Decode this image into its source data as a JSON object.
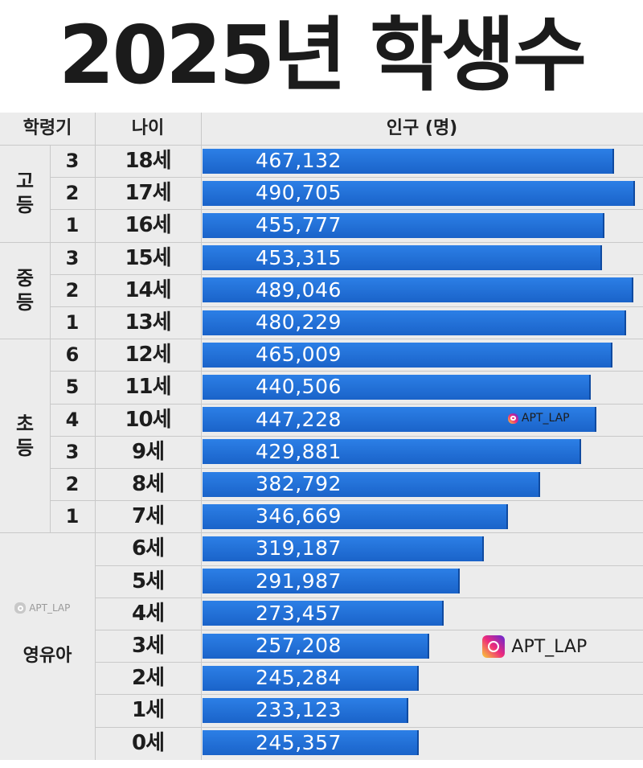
{
  "title": "2025년 학생수",
  "headers": {
    "level": "학령기",
    "age": "나이",
    "population": "인구 (명)"
  },
  "levels": [
    {
      "label": "고등",
      "start_row": 0,
      "end_row": 2
    },
    {
      "label": "중등",
      "start_row": 3,
      "end_row": 5
    },
    {
      "label": "초등",
      "start_row": 6,
      "end_row": 11
    },
    {
      "label": "영유아",
      "start_row": 12,
      "end_row": 18
    }
  ],
  "watermarks": [
    "APT_LAP",
    "APT_LAP",
    "APT_LAP"
  ],
  "colors": {
    "bar": "#1a6fd8",
    "background": "#ececec",
    "title": "#1b1b1b"
  },
  "chart_data": {
    "type": "bar",
    "orientation": "horizontal",
    "title": "2025년 학생수",
    "xlabel": "인구 (명)",
    "ylabel": "나이",
    "xlim": [
      0,
      500000
    ],
    "rows": [
      {
        "grade": "3",
        "age": "18세",
        "value": 467132,
        "label": "467,132"
      },
      {
        "grade": "2",
        "age": "17세",
        "value": 490705,
        "label": "490,705"
      },
      {
        "grade": "1",
        "age": "16세",
        "value": 455777,
        "label": "455,777"
      },
      {
        "grade": "3",
        "age": "15세",
        "value": 453315,
        "label": "453,315"
      },
      {
        "grade": "2",
        "age": "14세",
        "value": 489046,
        "label": "489,046"
      },
      {
        "grade": "1",
        "age": "13세",
        "value": 480229,
        "label": "480,229"
      },
      {
        "grade": "6",
        "age": "12세",
        "value": 465009,
        "label": "465,009"
      },
      {
        "grade": "5",
        "age": "11세",
        "value": 440506,
        "label": "440,506"
      },
      {
        "grade": "4",
        "age": "10세",
        "value": 447228,
        "label": "447,228"
      },
      {
        "grade": "3",
        "age": "9세",
        "value": 429881,
        "label": "429,881"
      },
      {
        "grade": "2",
        "age": "8세",
        "value": 382792,
        "label": "382,792"
      },
      {
        "grade": "1",
        "age": "7세",
        "value": 346669,
        "label": "346,669"
      },
      {
        "grade": "",
        "age": "6세",
        "value": 319187,
        "label": "319,187"
      },
      {
        "grade": "",
        "age": "5세",
        "value": 291987,
        "label": "291,987"
      },
      {
        "grade": "",
        "age": "4세",
        "value": 273457,
        "label": "273,457"
      },
      {
        "grade": "",
        "age": "3세",
        "value": 257208,
        "label": "257,208"
      },
      {
        "grade": "",
        "age": "2세",
        "value": 245284,
        "label": "245,284"
      },
      {
        "grade": "",
        "age": "1세",
        "value": 233123,
        "label": "233,123"
      },
      {
        "grade": "",
        "age": "0세",
        "value": 245357,
        "label": "245,357"
      }
    ]
  }
}
